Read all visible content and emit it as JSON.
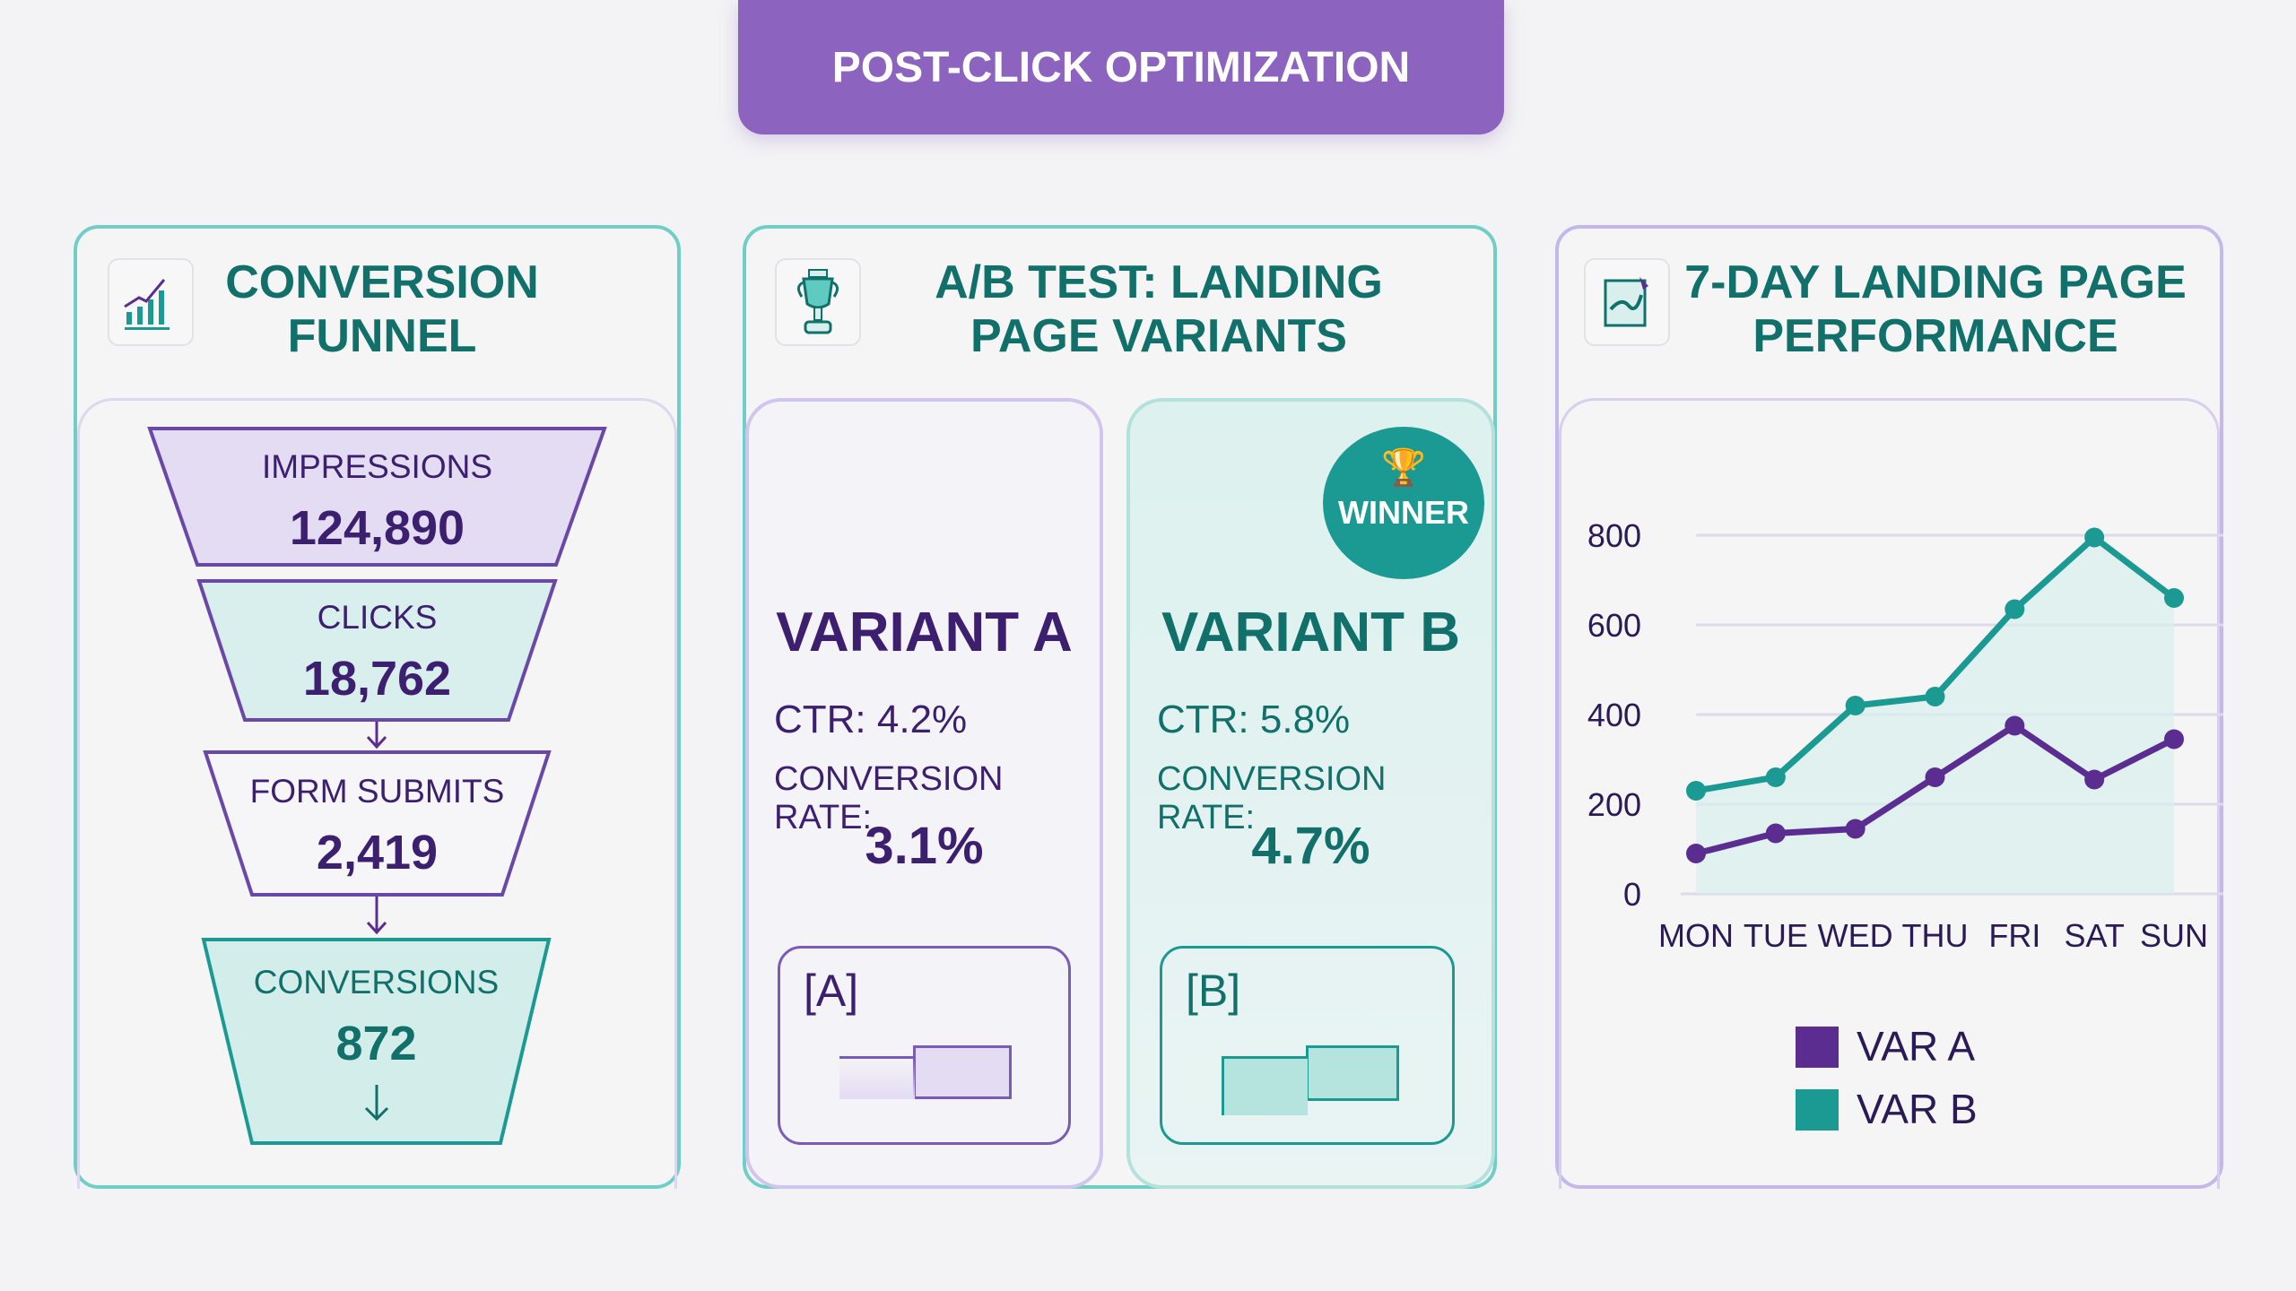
{
  "title": "POST-CLICK OPTIMIZATION",
  "funnel": {
    "title": "CONVERSION FUNNEL",
    "icon": "bar-chart-trend-icon",
    "stages": [
      {
        "label": "IMPRESSIONS",
        "value": "124,890"
      },
      {
        "label": "CLICKS",
        "value": "18,762"
      },
      {
        "label": "FORM SUBMITS",
        "value": "2,419"
      },
      {
        "label": "CONVERSIONS",
        "value": "872"
      }
    ]
  },
  "abtest": {
    "title": "A/B TEST: LANDING PAGE VARIANTS",
    "icon": "trophy-icon",
    "winner_badge": "WINNER",
    "variants": [
      {
        "name": "VARIANT A",
        "ctr": "CTR: 4.2%",
        "conv_label": "CONVERSION RATE:",
        "conv_value": "3.1%",
        "preview_label": "[A]"
      },
      {
        "name": "VARIANT B",
        "ctr": "CTR: 5.8%",
        "conv_label": "CONVERSION RATE:",
        "conv_value": "4.7%",
        "preview_label": "[B]"
      }
    ]
  },
  "performance": {
    "title": "7-DAY LANDING PAGE PERFORMANCE",
    "icon": "chart-document-icon"
  },
  "colors": {
    "purple": "#5b2d91",
    "teal": "#1a9a92",
    "banner": "#8d63c0"
  },
  "chart_data": {
    "type": "line",
    "categories": [
      "MON",
      "TUE",
      "WED",
      "THU",
      "FRI",
      "SAT",
      "SUN"
    ],
    "yticks": [
      "0",
      "200",
      "400",
      "600",
      "800"
    ],
    "ylim": [
      0,
      800
    ],
    "grid": true,
    "legend": "bottom",
    "series": [
      {
        "name": "VAR A",
        "color": "#5b2d91",
        "values": [
          90,
          135,
          145,
          260,
          375,
          255,
          345
        ]
      },
      {
        "name": "VAR B",
        "color": "#1a9a92",
        "values": [
          230,
          260,
          420,
          440,
          635,
          795,
          660
        ]
      }
    ]
  }
}
